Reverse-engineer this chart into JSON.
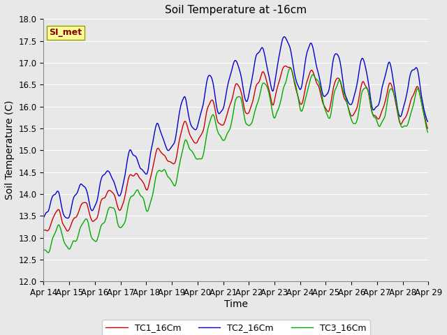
{
  "title": "Soil Temperature at -16cm",
  "xlabel": "Time",
  "ylabel": "Soil Temperature (C)",
  "ylim": [
    12.0,
    18.0
  ],
  "yticks": [
    12.0,
    12.5,
    13.0,
    13.5,
    14.0,
    14.5,
    15.0,
    15.5,
    16.0,
    16.5,
    17.0,
    17.5,
    18.0
  ],
  "xtick_labels": [
    "Apr 14",
    "Apr 15",
    "Apr 16",
    "Apr 17",
    "Apr 18",
    "Apr 19",
    "Apr 20",
    "Apr 21",
    "Apr 22",
    "Apr 23",
    "Apr 24",
    "Apr 25",
    "Apr 26",
    "Apr 27",
    "Apr 28",
    "Apr 29"
  ],
  "legend_label": "SI_met",
  "line_colors": [
    "#cc0000",
    "#0000cc",
    "#00aa00"
  ],
  "line_labels": [
    "TC1_16Cm",
    "TC2_16Cm",
    "TC3_16Cm"
  ],
  "plot_bg_color": "#e8e8e8",
  "fig_bg_color": "#e8e8e8",
  "grid_color": "#ffffff",
  "title_fontsize": 11,
  "axis_label_fontsize": 10,
  "tick_fontsize": 8.5,
  "legend_fontsize": 9
}
